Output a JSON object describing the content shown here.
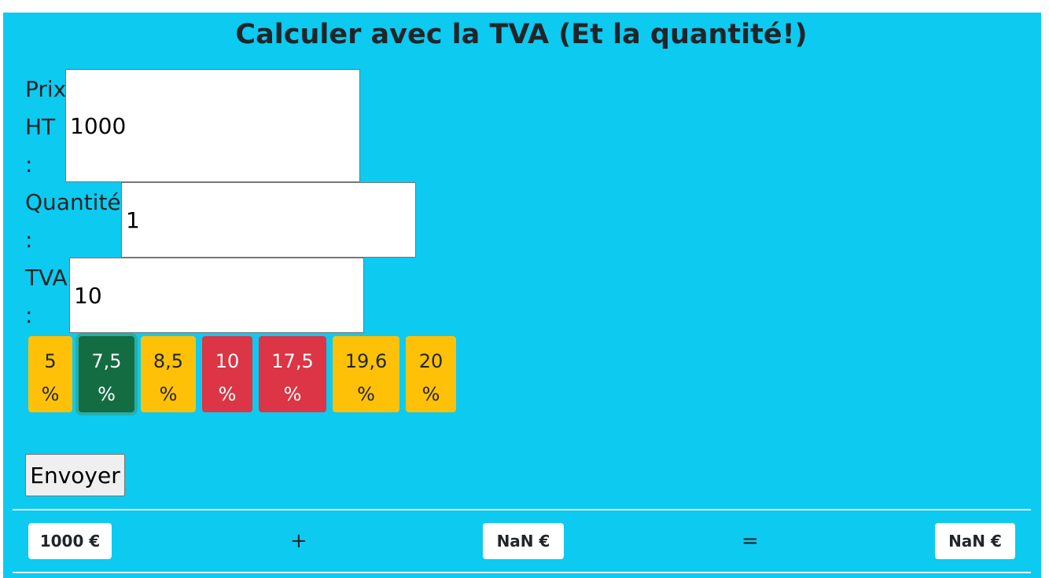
{
  "form": {
    "title": "Calculer avec la TVA (Et la quantité!)",
    "price": {
      "label_lines": [
        "Prix",
        "HT",
        ":"
      ],
      "value": "1000"
    },
    "quantity": {
      "label_lines": [
        "Quantité",
        ":"
      ],
      "value": "1"
    },
    "vat": {
      "label_lines": [
        "TVA",
        ":"
      ],
      "value": "10"
    },
    "rates": [
      {
        "lines": [
          "5",
          "%"
        ],
        "style": "warning"
      },
      {
        "lines": [
          "7,5",
          "%"
        ],
        "style": "success"
      },
      {
        "lines": [
          "8,5",
          "%"
        ],
        "style": "warning"
      },
      {
        "lines": [
          "10",
          "%"
        ],
        "style": "danger"
      },
      {
        "lines": [
          "17,5",
          "%"
        ],
        "style": "danger"
      },
      {
        "lines": [
          "19,6",
          "%"
        ],
        "style": "warning"
      },
      {
        "lines": [
          "20",
          "%"
        ],
        "style": "warning"
      }
    ],
    "submit_label": "Envoyer"
  },
  "result": {
    "price_ht": "1000 €",
    "plus": "+",
    "vat_amount": "NaN €",
    "equals": "=",
    "total": "NaN €"
  },
  "colors": {
    "background": "#0dcaf0",
    "warning": "#ffc107",
    "danger": "#dc3545",
    "success": "#146c43",
    "text": "#212529"
  }
}
